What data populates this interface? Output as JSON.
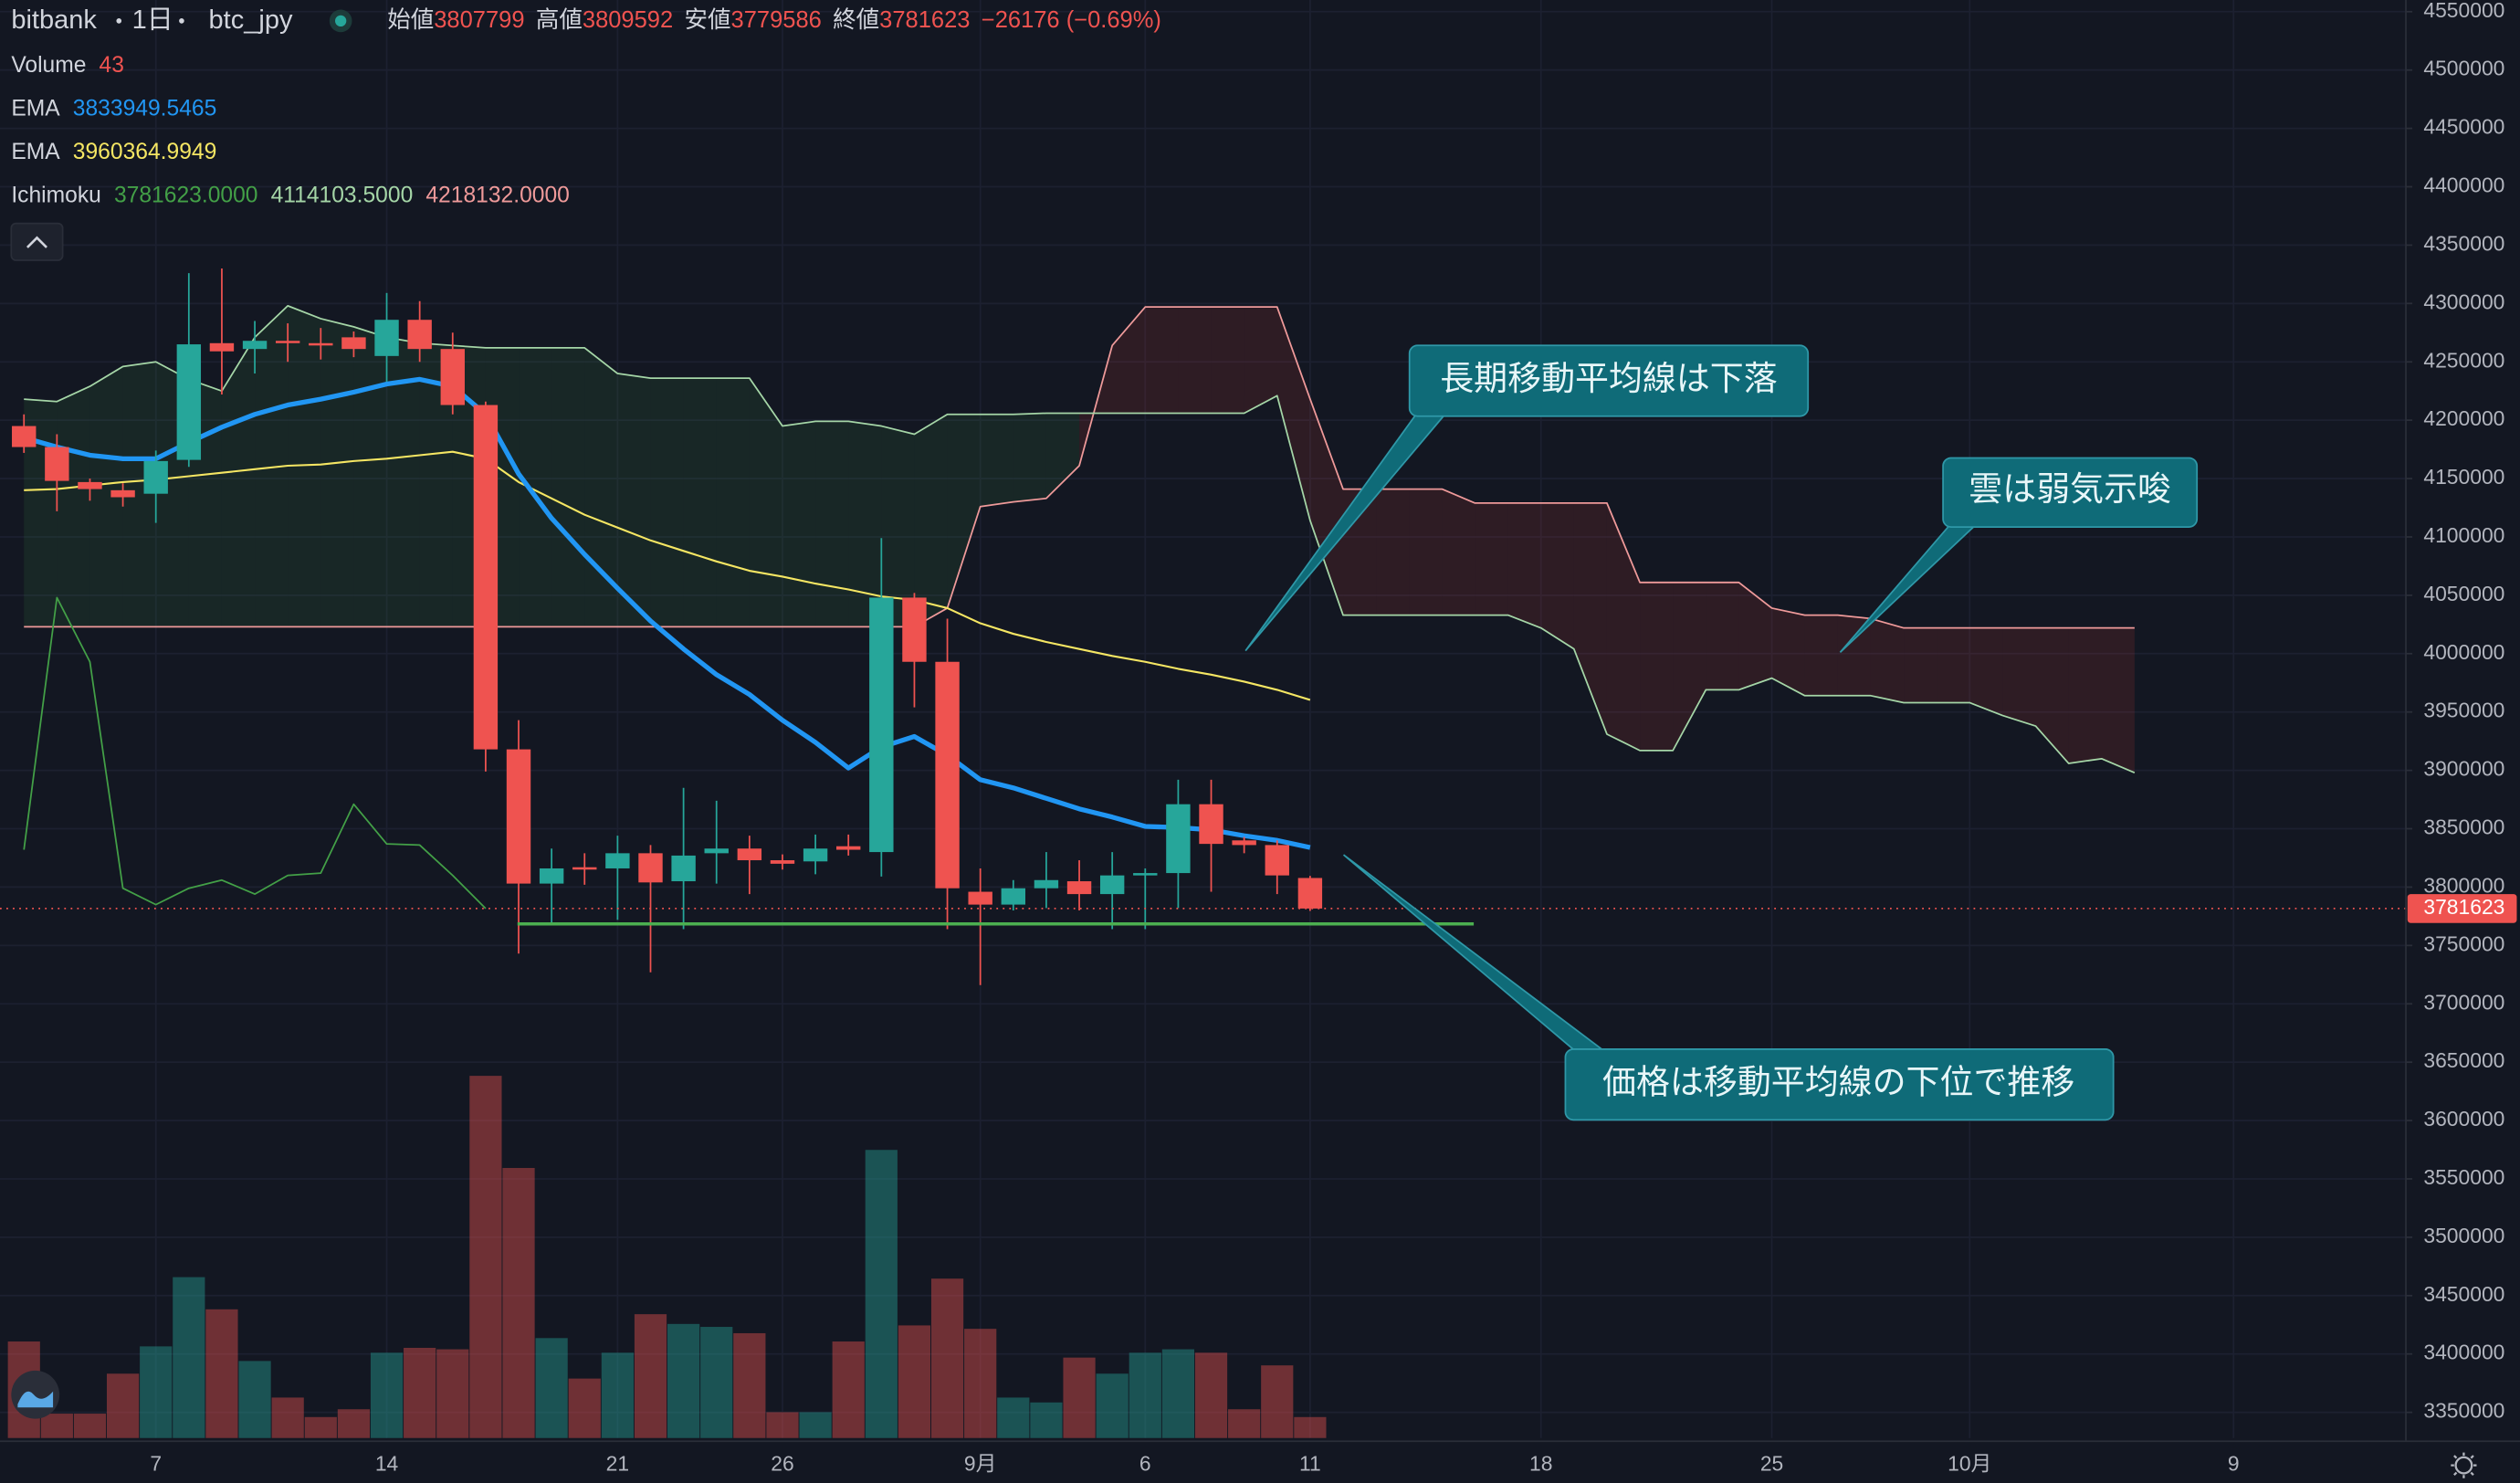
{
  "chart_data": {
    "type": "candlestick",
    "symbol": {
      "exchange": "bitbank",
      "interval": "1日",
      "pair": "btc_jpy"
    },
    "ohlc_labels": [
      "始値",
      "高値",
      "安値",
      "終値"
    ],
    "change": "−26176 (−0.69%)",
    "volume_label": "Volume",
    "ichimoku": {
      "name": "Ichimoku",
      "labels": [
        "3781623.0000",
        "4114103.5000",
        "4218132.0000"
      ]
    },
    "annotations": [
      "長期移動平均線は下落",
      "雲は弱気示唆",
      "価格は移動平均線の下位で推移"
    ],
    "up_color": "#26a69a",
    "down_color": "#ef5350",
    "grid": true,
    "categories": [
      null,
      null,
      null,
      null,
      "7",
      null,
      null,
      null,
      null,
      null,
      null,
      "14",
      null,
      null,
      null,
      null,
      null,
      null,
      "21",
      null,
      null,
      null,
      null,
      "26",
      null,
      null,
      null,
      null,
      null,
      "9月",
      null,
      null,
      null,
      null,
      "6",
      null,
      null,
      null,
      null,
      "11",
      null,
      null,
      null,
      null,
      null,
      null,
      "18",
      null,
      null,
      null,
      null,
      null,
      null,
      "25",
      null,
      null,
      null,
      null,
      null,
      "10月",
      null,
      null,
      null,
      null,
      null,
      null,
      null,
      "9",
      null,
      null,
      null
    ],
    "open": [
      4195000,
      4177000,
      4147000,
      4140000,
      4137000,
      4166000,
      4266000,
      4261000,
      4268000,
      4266000,
      4271000,
      4255000,
      4286000,
      4261000,
      4213000,
      3918000,
      3803000,
      3817000,
      3816000,
      3829000,
      3805000,
      3829000,
      3833000,
      3823000,
      3822000,
      3835000,
      3830000,
      4048000,
      3993000,
      3796000,
      3785000,
      3799000,
      3805000,
      3794000,
      3810000,
      3812000,
      3871000,
      3840000,
      3836000,
      3807799,
      null,
      null,
      null,
      null,
      null,
      null,
      null,
      null,
      null,
      null,
      null,
      null,
      null,
      null,
      null,
      null,
      null,
      null,
      null,
      null,
      null,
      null,
      null,
      null,
      null,
      null,
      null,
      null,
      null,
      null,
      null
    ],
    "high": [
      4205000,
      4188000,
      4150000,
      4146000,
      4174000,
      4326000,
      4330000,
      4285000,
      4283000,
      4279000,
      4276000,
      4309000,
      4302000,
      4275000,
      4216000,
      3943000,
      3833000,
      3829000,
      3844000,
      3836000,
      3885000,
      3874000,
      3844000,
      3828000,
      3845000,
      3845000,
      4099000,
      4052000,
      4030000,
      3816000,
      3806000,
      3830000,
      3823000,
      3830000,
      3816000,
      3892000,
      3892000,
      3843000,
      3840000,
      3809592,
      null,
      null,
      null,
      null,
      null,
      null,
      null,
      null,
      null,
      null,
      null,
      null,
      null,
      null,
      null,
      null,
      null,
      null,
      null,
      null,
      null,
      null,
      null,
      null,
      null,
      null,
      null,
      null,
      null,
      null,
      null
    ],
    "low": [
      4172000,
      4122000,
      4131000,
      4126000,
      4112000,
      4160000,
      4222000,
      4240000,
      4250000,
      4252000,
      4254000,
      4233000,
      4250000,
      4205000,
      3899000,
      3743000,
      3768000,
      3802000,
      3772000,
      3727000,
      3764000,
      3803000,
      3794000,
      3815000,
      3811000,
      3827000,
      3809000,
      3954000,
      3764000,
      3716000,
      3780000,
      3782000,
      3780000,
      3764000,
      3764000,
      3782000,
      3796000,
      3829000,
      3794000,
      3779586,
      null,
      null,
      null,
      null,
      null,
      null,
      null,
      null,
      null,
      null,
      null,
      null,
      null,
      null,
      null,
      null,
      null,
      null,
      null,
      null,
      null,
      null,
      null,
      null,
      null,
      null,
      null,
      null,
      null,
      null,
      null
    ],
    "close": [
      4177000,
      4148000,
      4141000,
      4134000,
      4165000,
      4265000,
      4259000,
      4268000,
      4266000,
      4264000,
      4261000,
      4286000,
      4261000,
      4213000,
      3918000,
      3803000,
      3816000,
      3815000,
      3829000,
      3804000,
      3827000,
      3833000,
      3823000,
      3820000,
      3833000,
      3832000,
      4048000,
      3993000,
      3799000,
      3785000,
      3799000,
      3806000,
      3794000,
      3810000,
      3812000,
      3871000,
      3837000,
      3836000,
      3810000,
      3781623,
      null,
      null,
      null,
      null,
      null,
      null,
      null,
      null,
      null,
      null,
      null,
      null,
      null,
      null,
      null,
      null,
      null,
      null,
      null,
      null,
      null,
      null,
      null,
      null,
      null,
      null,
      null,
      null,
      null,
      null,
      null
    ],
    "volume": [
      198,
      50,
      50,
      132,
      188,
      330,
      264,
      158,
      83,
      43,
      59,
      175,
      185,
      182,
      743,
      554,
      205,
      122,
      175,
      254,
      234,
      228,
      215,
      53,
      53,
      198,
      591,
      231,
      327,
      224,
      83,
      73,
      165,
      132,
      175,
      182,
      175,
      59,
      149,
      43,
      null,
      null,
      null,
      null,
      null,
      null,
      null,
      null,
      null,
      null,
      null,
      null,
      null,
      null,
      null,
      null,
      null,
      null,
      null,
      null,
      null,
      null,
      null,
      null,
      null,
      null,
      null,
      null,
      null,
      null,
      null
    ],
    "volume_lim": [
      0,
      2950
    ],
    "series": [
      {
        "name": "EMA",
        "color": "#2196f3",
        "values": [
          4185000,
          4177000,
          4170000,
          4167000,
          4167000,
          4181000,
          4194000,
          4205000,
          4213000,
          4218000,
          4224000,
          4231000,
          4235000,
          4229000,
          4205000,
          4154000,
          4116000,
          4085000,
          4056000,
          4028000,
          4004000,
          3982000,
          3965000,
          3943000,
          3924000,
          3902000,
          3920000,
          3929000,
          3913000,
          3892000,
          3885000,
          3876000,
          3867000,
          3860000,
          3852000,
          3851000,
          3849000,
          3844000,
          3840000,
          3833949.5465,
          null,
          null,
          null,
          null,
          null,
          null,
          null,
          null,
          null,
          null,
          null,
          null,
          null,
          null,
          null,
          null,
          null,
          null,
          null,
          null,
          null,
          null,
          null,
          null,
          null,
          null,
          null,
          null,
          null,
          null,
          null
        ]
      },
      {
        "name": "EMA",
        "color": "#f5e663",
        "values": [
          4140000,
          4141000,
          4144000,
          4147000,
          4149000,
          4152000,
          4155000,
          4158000,
          4161000,
          4162000,
          4165000,
          4167000,
          4170000,
          4173000,
          4167000,
          4147000,
          4133000,
          4119000,
          4108000,
          4097000,
          4088000,
          4079000,
          4071000,
          4066000,
          4060000,
          4055000,
          4049000,
          4046000,
          4039000,
          4026000,
          4017000,
          4010000,
          4004000,
          3998000,
          3993000,
          3987000,
          3982000,
          3976000,
          3969000,
          3960364.9949,
          null,
          null,
          null,
          null,
          null,
          null,
          null,
          null,
          null,
          null,
          null,
          null,
          null,
          null,
          null,
          null,
          null,
          null,
          null,
          null,
          null,
          null,
          null,
          null,
          null,
          null,
          null,
          null,
          null,
          null,
          null
        ]
      },
      {
        "color": "#43a047",
        "values": [
          3832000,
          4048000,
          3993000,
          3799000,
          3785000,
          3799000,
          3806000,
          3794000,
          3810000,
          3812000,
          3871000,
          3837000,
          3836000,
          3810000,
          3781623,
          null,
          null,
          null,
          null,
          null,
          null,
          null,
          null,
          null,
          null,
          null,
          null,
          null,
          null,
          null,
          null,
          null,
          null,
          null,
          null,
          null,
          null,
          null,
          null,
          null,
          null,
          null,
          null,
          null,
          null,
          null,
          null,
          null,
          null,
          null,
          null,
          null,
          null,
          null,
          null,
          null,
          null,
          null,
          null,
          null,
          null,
          null,
          null,
          null,
          null,
          null,
          null,
          null,
          null,
          null,
          null
        ]
      },
      {
        "color": "#a5d6a7",
        "values": [
          4218000,
          4216000,
          4229000,
          4246000,
          4250000,
          4235000,
          4225000,
          4271000,
          4298000,
          4287000,
          4280000,
          4271000,
          4266000,
          4264000,
          4262000,
          4262000,
          4262000,
          4262000,
          4240000,
          4236000,
          4236000,
          4236000,
          4236000,
          4195000,
          4199000,
          4199000,
          4195000,
          4188000,
          4205000,
          4205000,
          4205000,
          4206000,
          4206000,
          4206000,
          4206000,
          4206000,
          4206000,
          4206000,
          4221000,
          4114103.5,
          4033000,
          4033000,
          4033000,
          4033000,
          4033000,
          4033000,
          4022000,
          4004000,
          3931000,
          3917000,
          3917000,
          3969000,
          3969000,
          3979000,
          3964000,
          3964000,
          3964000,
          3958000,
          3958000,
          3958000,
          3947000,
          3938000,
          3906000,
          3910000,
          3898000,
          null,
          null,
          null,
          null,
          null,
          null
        ]
      },
      {
        "color": "#ef9a9a",
        "values": [
          4023000,
          4023000,
          4023000,
          4023000,
          4023000,
          4023000,
          4023000,
          4023000,
          4023000,
          4023000,
          4023000,
          4023000,
          4023000,
          4023000,
          4023000,
          4023000,
          4023000,
          4023000,
          4023000,
          4023000,
          4023000,
          4023000,
          4023000,
          4023000,
          4023000,
          4023000,
          4023000,
          4023000,
          4039000,
          4126000,
          4130000,
          4133000,
          4161000,
          4264000,
          4297000,
          4297000,
          4297000,
          4297000,
          4297000,
          4218132,
          4141000,
          4141000,
          4141000,
          4141000,
          4129000,
          4129000,
          4129000,
          4129000,
          4129000,
          4061000,
          4061000,
          4061000,
          4061000,
          4039000,
          4033000,
          4033000,
          4030000,
          4022000,
          4022000,
          4022000,
          4022000,
          4022000,
          4022000,
          4022000,
          4022000,
          null,
          null,
          null,
          null,
          null,
          null
        ]
      }
    ],
    "ylim": [
      3328000,
      4560000
    ],
    "yticks": [
      3350000,
      3400000,
      3450000,
      3500000,
      3550000,
      3600000,
      3650000,
      3700000,
      3750000,
      3800000,
      3850000,
      3900000,
      3950000,
      4000000,
      4050000,
      4100000,
      4150000,
      4200000,
      4250000,
      4300000,
      4350000,
      4400000,
      4450000,
      4500000,
      4550000
    ]
  }
}
